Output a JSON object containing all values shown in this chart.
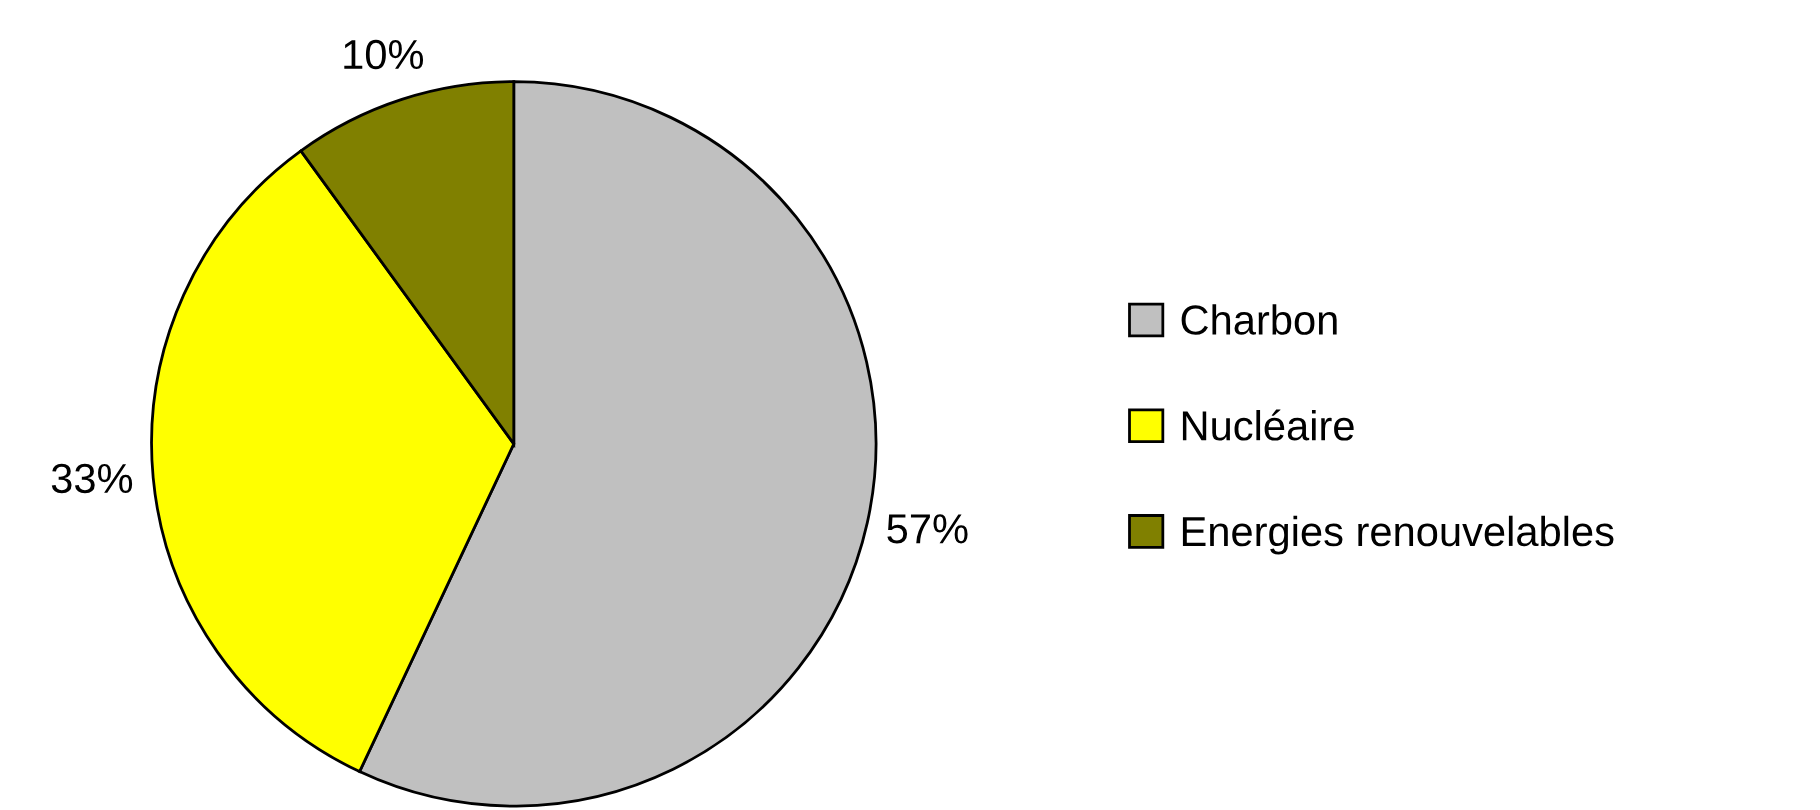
{
  "chart_data": {
    "type": "pie",
    "categories": [
      "Charbon",
      "Nucléaire",
      "Energies renouvelables"
    ],
    "values": [
      57,
      33,
      10
    ],
    "colors": [
      "#c0c0c0",
      "#ffff00",
      "#808000"
    ],
    "value_labels": [
      "57%",
      "33%",
      "10%"
    ],
    "legend": "right"
  }
}
